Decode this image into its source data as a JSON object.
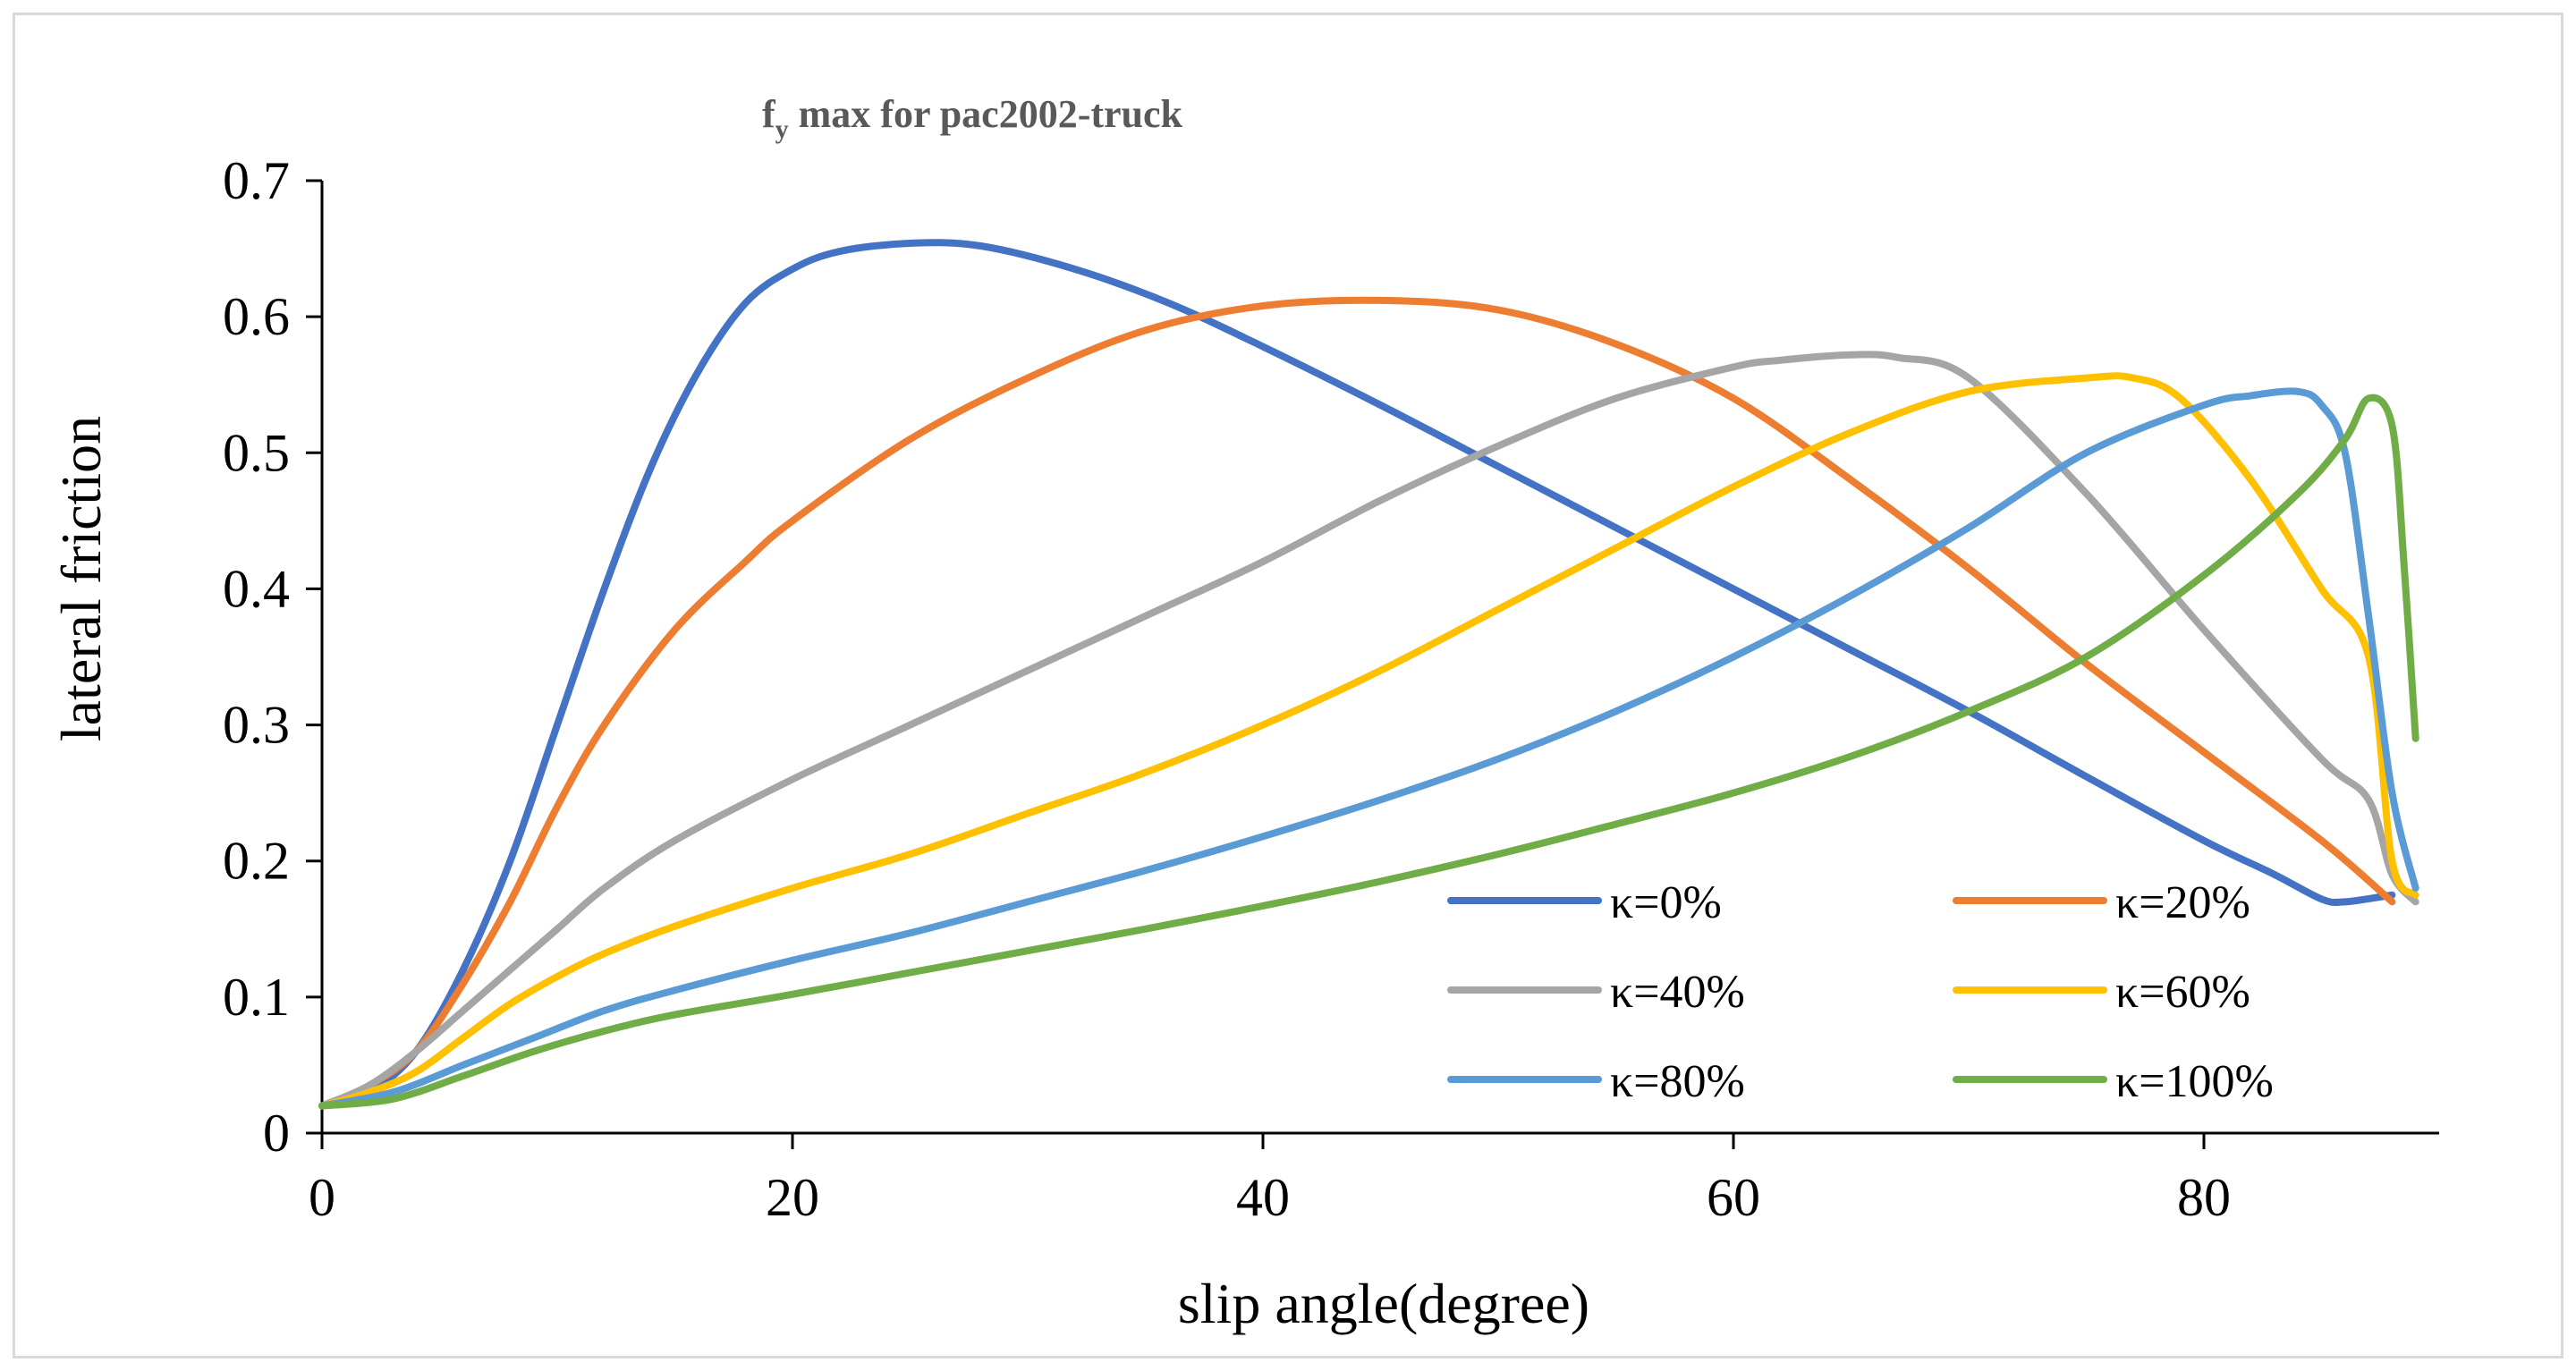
{
  "chart_data": {
    "type": "line",
    "title": {
      "base": "f",
      "subscript": "y",
      "rest": " max for pac2002-truck"
    },
    "xlabel": "slip angle(degree)",
    "ylabel": "lateral friction",
    "xlim": [
      0,
      90
    ],
    "ylim": [
      0,
      0.7
    ],
    "xticks": [
      0,
      20,
      40,
      60,
      80
    ],
    "xtick_labels": [
      "0",
      "20",
      "40",
      "60",
      "80"
    ],
    "yticks": [
      0,
      0.1,
      0.2,
      0.3,
      0.4,
      0.5,
      0.6,
      0.7
    ],
    "ytick_labels": [
      "0",
      "0.1",
      "0.2",
      "0.3",
      "0.4",
      "0.5",
      "0.6",
      "0.7"
    ],
    "grid": false,
    "legend_position": "bottom-right inside",
    "series": [
      {
        "name": "κ=0%",
        "color": "#4472c4",
        "x": [
          0,
          2,
          4,
          6,
          8,
          10,
          12,
          14,
          16,
          18,
          20,
          22,
          25,
          28,
          32,
          36,
          40,
          45,
          50,
          55,
          60,
          65,
          70,
          75,
          80,
          83,
          85,
          86,
          88
        ],
        "y": [
          0.02,
          0.03,
          0.06,
          0.12,
          0.2,
          0.3,
          0.4,
          0.49,
          0.56,
          0.61,
          0.635,
          0.648,
          0.654,
          0.652,
          0.635,
          0.61,
          0.578,
          0.535,
          0.49,
          0.445,
          0.4,
          0.355,
          0.31,
          0.262,
          0.215,
          0.19,
          0.172,
          0.17,
          0.175
        ]
      },
      {
        "name": "κ=20%",
        "color": "#ed7d31",
        "x": [
          0,
          2,
          4,
          6,
          8,
          10,
          12,
          15,
          18,
          20,
          25,
          30,
          35,
          40,
          45,
          50,
          55,
          60,
          65,
          70,
          75,
          80,
          85,
          88
        ],
        "y": [
          0.02,
          0.035,
          0.06,
          0.11,
          0.17,
          0.24,
          0.3,
          0.37,
          0.42,
          0.45,
          0.51,
          0.555,
          0.59,
          0.608,
          0.612,
          0.605,
          0.58,
          0.54,
          0.48,
          0.415,
          0.345,
          0.28,
          0.215,
          0.17
        ]
      },
      {
        "name": "κ=40%",
        "color": "#a5a5a5",
        "x": [
          0,
          2,
          4,
          6,
          8,
          10,
          12,
          15,
          20,
          25,
          30,
          35,
          40,
          45,
          50,
          55,
          60,
          62,
          65,
          67,
          70,
          75,
          80,
          85,
          87,
          88,
          89
        ],
        "y": [
          0.02,
          0.035,
          0.06,
          0.09,
          0.12,
          0.15,
          0.18,
          0.215,
          0.26,
          0.3,
          0.34,
          0.38,
          0.42,
          0.465,
          0.505,
          0.54,
          0.563,
          0.568,
          0.572,
          0.57,
          0.555,
          0.47,
          0.37,
          0.275,
          0.245,
          0.19,
          0.17
        ]
      },
      {
        "name": "κ=60%",
        "color": "#ffc000",
        "x": [
          0,
          2,
          4,
          6,
          8,
          10,
          12,
          15,
          20,
          25,
          30,
          35,
          40,
          45,
          50,
          55,
          60,
          65,
          70,
          75,
          77,
          79,
          82,
          85,
          87,
          88,
          89
        ],
        "y": [
          0.02,
          0.03,
          0.045,
          0.07,
          0.095,
          0.115,
          0.132,
          0.152,
          0.18,
          0.205,
          0.235,
          0.265,
          0.3,
          0.34,
          0.385,
          0.43,
          0.475,
          0.515,
          0.545,
          0.555,
          0.555,
          0.54,
          0.48,
          0.4,
          0.35,
          0.2,
          0.175
        ]
      },
      {
        "name": "κ=80%",
        "color": "#5b9bd5",
        "x": [
          0,
          3,
          6,
          9,
          12,
          15,
          20,
          25,
          30,
          35,
          40,
          45,
          50,
          55,
          60,
          65,
          70,
          75,
          80,
          82,
          84,
          85,
          86,
          87,
          88,
          89
        ],
        "y": [
          0.02,
          0.03,
          0.05,
          0.07,
          0.09,
          0.105,
          0.127,
          0.147,
          0.17,
          0.193,
          0.218,
          0.245,
          0.275,
          0.31,
          0.35,
          0.395,
          0.445,
          0.5,
          0.535,
          0.542,
          0.545,
          0.535,
          0.5,
          0.38,
          0.25,
          0.18
        ]
      },
      {
        "name": "κ=100%",
        "color": "#70ad47",
        "x": [
          0,
          3,
          6,
          9,
          12,
          15,
          20,
          25,
          30,
          35,
          40,
          45,
          50,
          55,
          60,
          65,
          70,
          75,
          80,
          84,
          86,
          87,
          88,
          88.5,
          89
        ],
        "y": [
          0.02,
          0.025,
          0.042,
          0.06,
          0.075,
          0.087,
          0.102,
          0.118,
          0.134,
          0.15,
          0.167,
          0.185,
          0.205,
          0.227,
          0.25,
          0.277,
          0.31,
          0.35,
          0.41,
          0.47,
          0.51,
          0.54,
          0.52,
          0.42,
          0.29
        ]
      }
    ]
  }
}
